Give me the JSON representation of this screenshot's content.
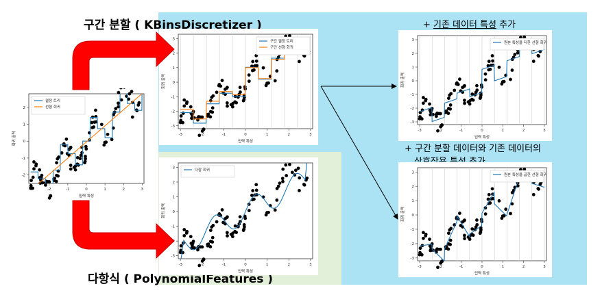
{
  "captions": {
    "binning": "구간 분할 ( KBinsDiscretizer )",
    "polynomial": "다항식 ( PolynomialFeatures )"
  },
  "notes": {
    "add_original": {
      "prefix": "+ ",
      "underlined": "기존 데이터 특성",
      "suffix": " 추가"
    },
    "add_interaction": {
      "line1": "+ 구간 분할 데이터와 기존 데이터의",
      "underlined": "상호작용 특성",
      "suffix": " 추가"
    }
  },
  "colors": {
    "arrow_red": "#ff0000",
    "line_blue": "#1f77b4",
    "line_orange": "#ff7f0e",
    "panel_blue": "#abe3f5",
    "panel_green": "#e3f0d9"
  },
  "icons": [
    "red-curved-arrow",
    "thin-arrow"
  ],
  "chart_data": [
    {
      "id": "main",
      "type": "line",
      "xlabel": "입력 특성",
      "ylabel": "회귀 출력",
      "xlim": [
        -3.1,
        3.1
      ],
      "ylim": [
        -2.5,
        2.8
      ],
      "xticks": [
        -3,
        -2,
        -1,
        0,
        1,
        2,
        3
      ],
      "yticks": [
        -2,
        -1,
        0,
        1,
        2
      ],
      "legend_position": "upper-left",
      "bin_lines": false,
      "series": [
        {
          "name": "결정 트리",
          "kind": "tree",
          "color": "#1f77b4"
        },
        {
          "name": "선형 회귀",
          "kind": "linear",
          "color": "#ff7f0e"
        }
      ]
    },
    {
      "id": "binned",
      "type": "line",
      "xlabel": "입력 특성",
      "ylabel": "회귀 출력",
      "xlim": [
        -3.1,
        3.1
      ],
      "ylim": [
        -3.2,
        3.3
      ],
      "xticks": [
        -3,
        -2,
        -1,
        0,
        1,
        2,
        3
      ],
      "yticks": [
        -3,
        -2,
        -1,
        0,
        1,
        2,
        3
      ],
      "legend_position": "upper-right",
      "bin_lines": true,
      "series": [
        {
          "name": "구간 결정 트리",
          "kind": "binstep",
          "color": "#1f77b4"
        },
        {
          "name": "구간 선형 회귀",
          "kind": "binstep",
          "color": "#ff7f0e"
        }
      ]
    },
    {
      "id": "poly",
      "type": "line",
      "xlabel": "입력 특성",
      "ylabel": "회귀 출력",
      "xlim": [
        -3.1,
        3.1
      ],
      "ylim": [
        -3.2,
        3.3
      ],
      "xticks": [
        -3,
        -2,
        -1,
        0,
        1,
        2,
        3
      ],
      "yticks": [
        -3,
        -2,
        -1,
        0,
        1,
        2,
        3
      ],
      "legend_position": "upper-left",
      "bin_lines": false,
      "series": [
        {
          "name": "다항 회귀",
          "kind": "poly",
          "color": "#1f77b4"
        }
      ]
    },
    {
      "id": "orig",
      "type": "line",
      "xlabel": "입력 특성",
      "ylabel": "회귀 출력",
      "xlim": [
        -3.1,
        3.1
      ],
      "ylim": [
        -3.2,
        3.3
      ],
      "xticks": [
        -3,
        -2,
        -1,
        0,
        1,
        2,
        3
      ],
      "yticks": [
        -3,
        -2,
        -1,
        0,
        1,
        2,
        3
      ],
      "legend_position": "upper-right",
      "bin_lines": true,
      "series": [
        {
          "name": "원본 특성을 더한 선형 회귀",
          "kind": "binslope",
          "color": "#1f77b4"
        }
      ]
    },
    {
      "id": "inter",
      "type": "line",
      "xlabel": "입력 특성",
      "ylabel": "회귀 출력",
      "xlim": [
        -3.1,
        3.1
      ],
      "ylim": [
        -3.2,
        3.3
      ],
      "xticks": [
        -3,
        -2,
        -1,
        0,
        1,
        2,
        3
      ],
      "yticks": [
        -3,
        -2,
        -1,
        0,
        1,
        2,
        3
      ],
      "legend_position": "upper-right",
      "bin_lines": true,
      "series": [
        {
          "name": "원본 특성을 곱한 선형 회귀",
          "kind": "binmult",
          "color": "#1f77b4"
        }
      ]
    }
  ]
}
